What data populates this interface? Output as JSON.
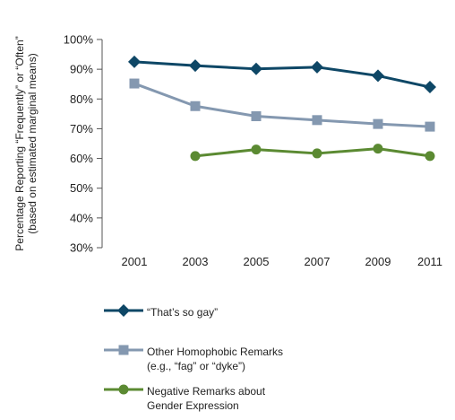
{
  "chart_data": {
    "type": "line",
    "x": [
      "2001",
      "2003",
      "2005",
      "2007",
      "2009",
      "2011"
    ],
    "ylabel_lines": [
      "Percentage Reporting “Frequently” or “Often”",
      "(based on estimated marginal means)"
    ],
    "ylim": [
      30,
      100
    ],
    "yticks": [
      "30%",
      "40%",
      "50%",
      "60%",
      "70%",
      "80%",
      "90%",
      "100%"
    ],
    "ytick_values": [
      30,
      40,
      50,
      60,
      70,
      80,
      90,
      100
    ],
    "grid": false,
    "legend_position": "bottom",
    "series": [
      {
        "name": "“That’s so gay”",
        "name_lines": [
          "“That’s so gay”"
        ],
        "marker": "diamond",
        "color": "#0e4766",
        "values": [
          92.5,
          91.2,
          90.1,
          90.7,
          87.8,
          84.0
        ]
      },
      {
        "name": "Other Homophobic Remarks (e.g., “fag” or “dyke”)",
        "name_lines": [
          "Other Homophobic Remarks",
          "(e.g., “fag” or “dyke”)"
        ],
        "marker": "square",
        "color": "#8498b0",
        "values": [
          85.2,
          77.6,
          74.2,
          72.9,
          71.6,
          70.7
        ]
      },
      {
        "name": "Negative Remarks about Gender Expression",
        "name_lines": [
          "Negative Remarks about",
          "Gender Expression"
        ],
        "marker": "circle",
        "color": "#5b8a32",
        "values": [
          null,
          60.8,
          63.0,
          61.7,
          63.3,
          60.8
        ]
      }
    ]
  }
}
